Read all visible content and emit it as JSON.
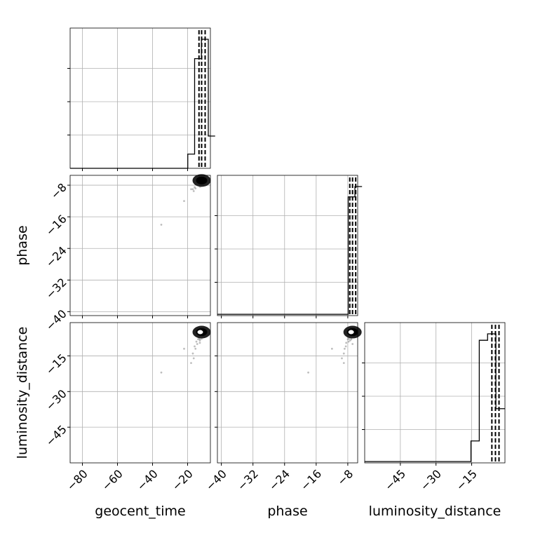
{
  "chart_data": {
    "type": "corner",
    "parameters": [
      "geocent_time",
      "phase",
      "luminosity_distance"
    ],
    "grid": true,
    "ranges": {
      "geocent_time": [
        -87,
        -7
      ],
      "phase": [
        -41,
        -5.5
      ],
      "luminosity_distance": [
        -60,
        -1
      ]
    },
    "ticks": {
      "geocent_time": [
        -80,
        -60,
        -40,
        -20
      ],
      "phase": [
        -40,
        -32,
        -24,
        -16,
        -8
      ],
      "luminosity_distance": [
        -45,
        -30,
        -15
      ]
    },
    "tick_labels": {
      "geocent_time": [
        "−80",
        "−60",
        "−40",
        "−20"
      ],
      "phase": [
        "−40",
        "−32",
        "−24",
        "−16",
        "−8"
      ],
      "luminosity_distance": [
        "−45",
        "−30",
        "−15"
      ]
    },
    "quantiles": {
      "geocent_time": [
        -13.5,
        -12,
        -10
      ],
      "phase": [
        -7.5,
        -6.8,
        -6.0
      ],
      "luminosity_distance": [
        -6.5,
        -5.0,
        -3.5
      ]
    },
    "histograms": {
      "geocent_time": {
        "edges": [
          -87,
          -19.9,
          -16.0,
          -12.1,
          -8.2,
          -4.3
        ],
        "counts": [
          0,
          0.11,
          0.85,
          1.0,
          0.25
        ]
      },
      "phase": {
        "edges": [
          -41,
          -7.9,
          -6.2,
          -4.4
        ],
        "counts": [
          0.01,
          0.92,
          1.0
        ]
      },
      "luminosity_distance": {
        "edges": [
          -60,
          -15.3,
          -11.8,
          -8.3,
          -4.8,
          -1.3
        ],
        "counts": [
          0.01,
          0.17,
          0.95,
          1.0,
          0.42
        ]
      }
    },
    "samples": {
      "geocent_time": [
        -14,
        -13,
        -12,
        -15,
        -11,
        -13.5,
        -12.5,
        -14.5,
        -10.5,
        -16,
        -11.5,
        -13,
        -12,
        -15.5,
        -17,
        -10,
        -14,
        -13,
        -12,
        -16.5,
        -18,
        -22,
        -35
      ],
      "phase": [
        -7.5,
        -8,
        -7,
        -7.8,
        -6.5,
        -7.2,
        -8.2,
        -6.8,
        -7.6,
        -8.5,
        -6.2,
        -7.4,
        -7.9,
        -8.8,
        -9,
        -6,
        -7.1,
        -8.4,
        -7.7,
        -9.5,
        -9,
        -12,
        -18
      ],
      "luminosity_distance": [
        -7,
        -8,
        -6,
        -9,
        -5,
        -7.5,
        -6.5,
        -10,
        -5.5,
        -11,
        -6.8,
        -8.5,
        -7.2,
        -12,
        -14,
        -4.5,
        -8,
        -9.5,
        -7.8,
        -16,
        -18,
        -12,
        -22
      ]
    }
  }
}
